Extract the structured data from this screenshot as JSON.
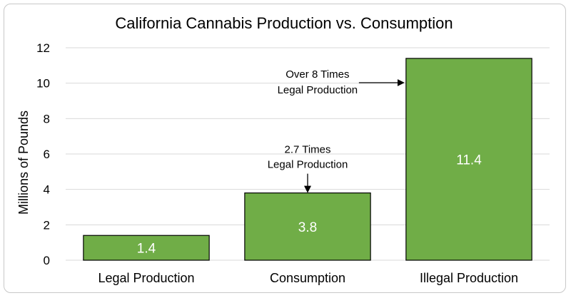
{
  "chart_data": {
    "type": "bar",
    "title": "California Cannabis Production vs. Consumption",
    "xlabel": "",
    "ylabel": "Millions of Pounds",
    "ylim": [
      0,
      12
    ],
    "yticks": [
      0,
      2,
      4,
      6,
      8,
      10,
      12
    ],
    "categories": [
      "Legal Production",
      "Consumption",
      "Illegal Production"
    ],
    "values": [
      1.4,
      3.8,
      11.4
    ],
    "data_labels": [
      "1.4",
      "3.8",
      "11.4"
    ],
    "bar_color": "#70AD47",
    "bar_edge_color": "#000000",
    "grid": true,
    "grid_color": "#d9d9d9",
    "annotations": [
      {
        "category": "Consumption",
        "lines": [
          "2.7 Times",
          "Legal Production"
        ],
        "arrow": "down"
      },
      {
        "category": "Illegal Production",
        "lines": [
          "Over 8 Times",
          "Legal Production"
        ],
        "arrow": "right"
      }
    ]
  }
}
